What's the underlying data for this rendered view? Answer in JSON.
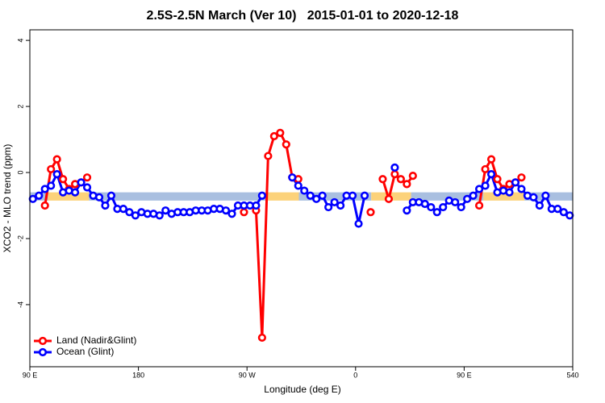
{
  "chart_data": {
    "type": "line",
    "title": "2.5S-2.5N March (Ver 10)   2015-01-01 to 2020-12-18",
    "xlabel": "Longitude (deg E)",
    "ylabel": "XCO2 - MLO trend (ppm)",
    "xlim": [
      90,
      540
    ],
    "ylim": [
      -5.88,
      4.32
    ],
    "xticks": [
      {
        "value": 90,
        "label": "90 E"
      },
      180,
      {
        "value": 270,
        "label": "90 W"
      },
      {
        "value": 360,
        "label": "0"
      },
      {
        "value": 450,
        "label": "90 E"
      },
      540
    ],
    "yticks": [
      -4,
      -2,
      0,
      2,
      4
    ],
    "legend": "bottom-left",
    "band": {
      "values": [
        -0.85,
        -0.6
      ],
      "segments": [
        {
          "x": [
            90,
            105
          ],
          "color": "#a9bfe0"
        },
        {
          "x": [
            105,
            139
          ],
          "color": "#fcd27a"
        },
        {
          "x": [
            139,
            286
          ],
          "color": "#a9bfe0"
        },
        {
          "x": [
            286,
            313
          ],
          "color": "#fcd27a"
        },
        {
          "x": [
            313,
            373
          ],
          "color": "#a9bfe0"
        },
        {
          "x": [
            373,
            406
          ],
          "color": "#fcd27a"
        },
        {
          "x": [
            406,
            466
          ],
          "color": "#a9bfe0"
        },
        {
          "x": [
            466,
            500
          ],
          "color": "#fcd27a"
        },
        {
          "x": [
            500,
            540
          ],
          "color": "#a9bfe0"
        }
      ]
    },
    "x": [
      92.5,
      97.5,
      102.5,
      107.5,
      112.5,
      117.5,
      122.5,
      127.5,
      132.5,
      137.5,
      142.5,
      147.5,
      152.5,
      157.5,
      162.5,
      167.5,
      172.5,
      177.5,
      182.5,
      187.5,
      192.5,
      197.5,
      202.5,
      207.5,
      212.5,
      217.5,
      222.5,
      227.5,
      232.5,
      237.5,
      242.5,
      247.5,
      252.5,
      257.5,
      262.5,
      267.5,
      272.5,
      277.5,
      282.5,
      287.5,
      292.5,
      297.5,
      302.5,
      307.5,
      312.5,
      317.5,
      322.5,
      327.5,
      332.5,
      337.5,
      342.5,
      347.5,
      352.5,
      357.5,
      362.5,
      367.5,
      372.5,
      377.5,
      382.5,
      387.5,
      392.5,
      397.5,
      402.5,
      407.5,
      412.5,
      417.5,
      422.5,
      427.5,
      432.5,
      437.5,
      442.5,
      447.5,
      452.5,
      457.5,
      462.5,
      467.5,
      472.5,
      477.5,
      482.5,
      487.5,
      492.5,
      497.5,
      502.5,
      507.5,
      512.5,
      517.5,
      522.5,
      527.5,
      532.5,
      537.5
    ],
    "series": [
      {
        "name": "Land (Nadir&Glint)",
        "color": "#ff0000",
        "values": [
          null,
          null,
          -1.0,
          0.1,
          0.4,
          -0.2,
          -0.5,
          -0.35,
          -0.3,
          -0.15,
          null,
          null,
          null,
          null,
          null,
          null,
          null,
          null,
          null,
          null,
          null,
          null,
          null,
          null,
          null,
          null,
          null,
          null,
          null,
          null,
          null,
          null,
          null,
          null,
          null,
          -1.2,
          null,
          -1.15,
          -5.0,
          0.5,
          1.1,
          1.2,
          0.85,
          -0.15,
          -0.2,
          null,
          null,
          null,
          null,
          null,
          null,
          null,
          null,
          null,
          null,
          null,
          -1.2,
          null,
          -0.2,
          -0.8,
          -0.05,
          -0.2,
          -0.35,
          -0.1,
          null,
          null,
          null,
          null,
          null,
          null,
          null,
          null,
          null,
          null,
          -1.0,
          0.1,
          0.4,
          -0.2,
          -0.5,
          -0.35,
          -0.3,
          -0.15,
          null,
          null,
          null,
          null,
          null,
          null,
          null,
          null
        ]
      },
      {
        "name": "Ocean (Glint)",
        "color": "#0000ff",
        "values": [
          -0.8,
          -0.7,
          -0.5,
          -0.4,
          -0.05,
          -0.6,
          -0.55,
          -0.6,
          -0.3,
          -0.45,
          -0.7,
          -0.75,
          -1.0,
          -0.7,
          -1.1,
          -1.1,
          -1.2,
          -1.3,
          -1.2,
          -1.25,
          -1.25,
          -1.3,
          -1.15,
          -1.25,
          -1.2,
          -1.2,
          -1.2,
          -1.15,
          -1.15,
          -1.15,
          -1.1,
          -1.1,
          -1.15,
          -1.25,
          -1.0,
          -1.0,
          -1.0,
          -1.0,
          -0.7,
          null,
          null,
          null,
          null,
          -0.15,
          -0.4,
          -0.55,
          -0.7,
          -0.8,
          -0.7,
          -1.05,
          -0.9,
          -1.0,
          -0.7,
          -0.7,
          -1.55,
          -0.7,
          null,
          null,
          null,
          null,
          0.15,
          null,
          -1.15,
          -0.9,
          -0.9,
          -0.95,
          -1.05,
          -1.2,
          -1.05,
          -0.85,
          -0.9,
          -1.05,
          -0.8,
          -0.7,
          -0.5,
          -0.4,
          -0.05,
          -0.6,
          -0.55,
          -0.6,
          -0.3,
          -0.5,
          -0.7,
          -0.75,
          -1.0,
          -0.7,
          -1.1,
          -1.1,
          -1.2,
          -1.3
        ]
      }
    ]
  }
}
